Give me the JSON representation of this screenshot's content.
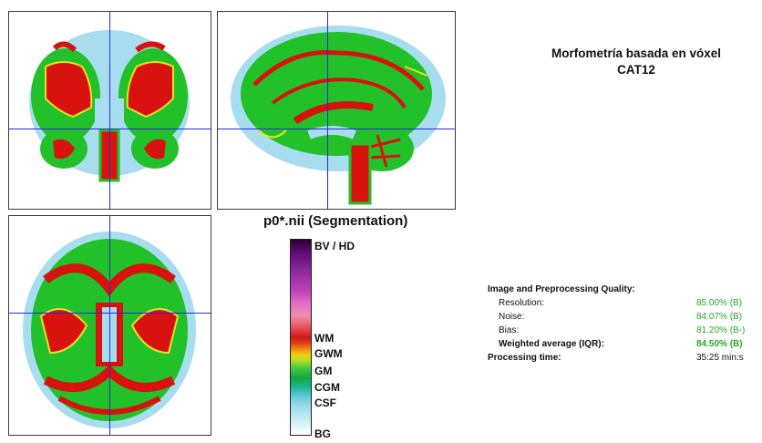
{
  "header": {
    "title_line1": "Morfometría basada en vóxel",
    "title_line2": "CAT12"
  },
  "segmentation": {
    "title": "p0*.nii (Segmentation)",
    "labels": [
      "BV / HD",
      "WM",
      "GWM",
      "GM",
      "CGM",
      "CSF",
      "BG"
    ]
  },
  "colors": {
    "wm": "#d8120e",
    "gm": "#22c12a",
    "border_yellow": "#e8e020",
    "csf": "#a8dcef",
    "crosshair": "#2b2bd8"
  },
  "views": {
    "coronal": "coronal-brain-slice",
    "sagittal": "sagittal-brain-slice",
    "axial": "axial-brain-slice"
  },
  "quality": {
    "heading": "Image and Preprocessing Quality:",
    "rows": [
      {
        "label": "Resolution:",
        "value": "85.00% (B)"
      },
      {
        "label": "Noise:",
        "value": "84.07% (B)"
      },
      {
        "label": "Bias:",
        "value": "81.20% (B-)"
      },
      {
        "label": "Weighted average (IQR):",
        "value": "84.50% (B)"
      }
    ],
    "time_label": "Processing time:",
    "time_value": "35:25 min:s"
  }
}
